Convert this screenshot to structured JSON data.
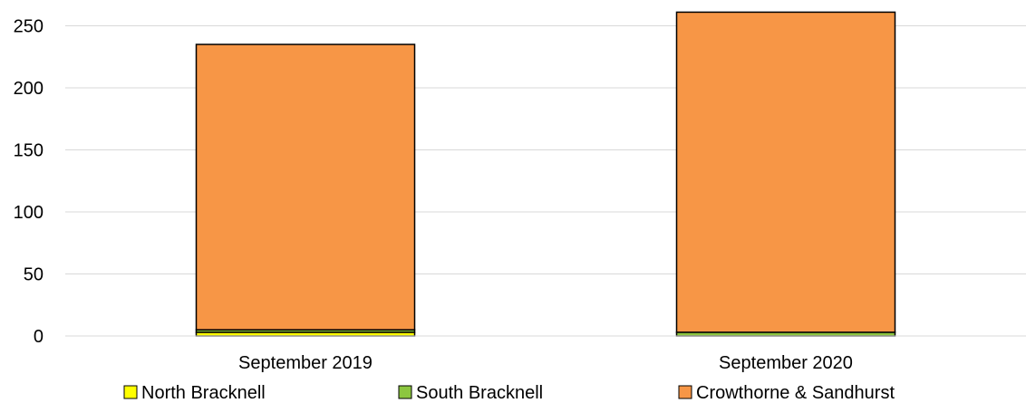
{
  "chart_data": {
    "type": "bar",
    "stacked": true,
    "categories": [
      "September 2019",
      "September 2020"
    ],
    "series": [
      {
        "name": "North Bracknell",
        "color": "#ffff00",
        "values": [
          3,
          0
        ]
      },
      {
        "name": "South Bracknell",
        "color": "#8cc63f",
        "values": [
          2,
          3
        ]
      },
      {
        "name": "Crowthorne & Sandhurst",
        "color": "#f79646",
        "values": [
          230,
          258
        ]
      }
    ],
    "ylim": [
      0,
      260
    ],
    "yticks": [
      0,
      50,
      100,
      150,
      200,
      250
    ],
    "grid": true,
    "legend": "bottom"
  }
}
